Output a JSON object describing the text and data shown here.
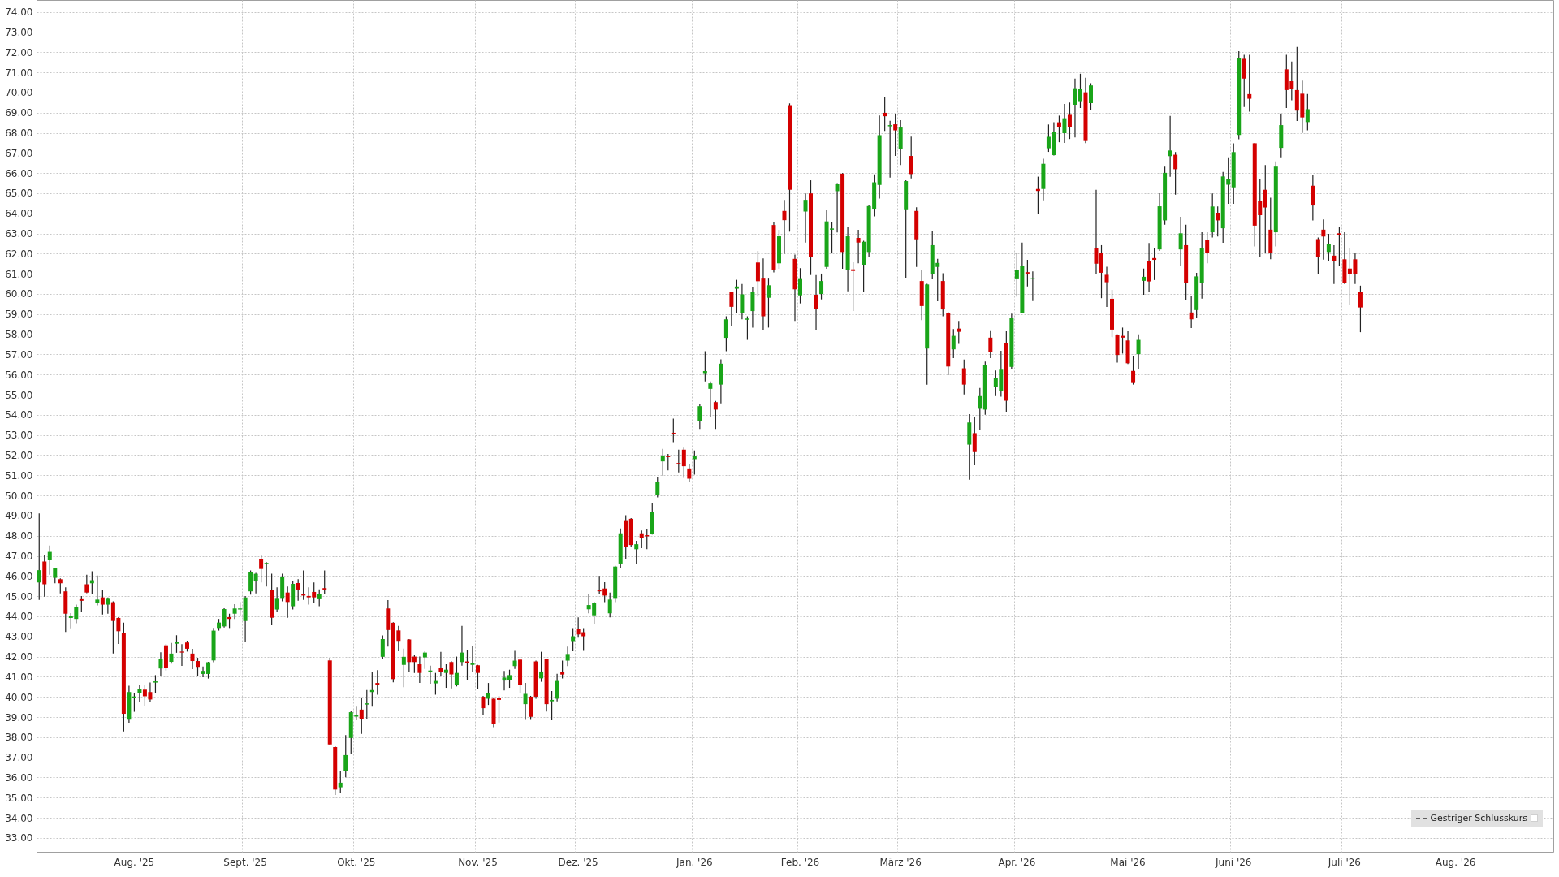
{
  "chart_data": {
    "type": "candlestick",
    "categories": [
      null,
      null,
      null,
      null,
      null,
      null,
      null,
      null,
      null,
      null,
      null,
      null,
      null,
      null,
      null,
      null,
      null,
      null,
      "Aug. '25",
      null,
      null,
      null,
      null,
      null,
      null,
      null,
      null,
      null,
      null,
      null,
      null,
      null,
      null,
      null,
      null,
      null,
      null,
      null,
      null,
      "Sept. '25",
      null,
      null,
      null,
      null,
      null,
      null,
      null,
      null,
      null,
      null,
      null,
      null,
      null,
      null,
      null,
      null,
      null,
      null,
      null,
      null,
      "Okt. '25",
      null,
      null,
      null,
      null,
      null,
      null,
      null,
      null,
      null,
      null,
      null,
      null,
      null,
      null,
      null,
      null,
      null,
      null,
      null,
      null,
      null,
      null,
      "Nov. '25",
      null,
      null,
      null,
      null,
      null,
      null,
      null,
      null,
      null,
      null,
      null,
      null,
      null,
      null,
      null,
      null,
      null,
      null,
      "Dez. '25",
      null,
      null,
      null,
      null,
      null,
      null,
      null,
      null,
      null,
      null,
      null,
      null,
      null,
      null,
      null,
      null,
      null,
      null,
      null,
      null,
      null,
      "Jan. '26",
      null,
      null,
      null,
      null,
      null,
      null,
      null,
      null,
      null,
      null,
      null,
      null,
      null,
      null,
      null,
      null,
      null,
      null,
      null,
      "Feb. '26",
      null,
      null,
      null,
      null,
      null,
      null,
      null,
      null,
      null,
      null,
      null,
      null,
      null,
      null,
      null,
      null,
      null,
      null,
      "März '26",
      null,
      null,
      null,
      null,
      null,
      null,
      null,
      null,
      null,
      null,
      null,
      null,
      null,
      null,
      null,
      null,
      null,
      null,
      null,
      null,
      null,
      "Apr. '26",
      null,
      null,
      null,
      null,
      null,
      null,
      null,
      null,
      null,
      null,
      null,
      null,
      null,
      null,
      null,
      null,
      null,
      null,
      null,
      null,
      "Mai '26",
      null,
      null,
      null,
      null,
      null,
      null,
      null,
      null,
      null,
      null,
      null,
      null,
      null,
      null,
      null,
      null,
      null,
      null,
      null,
      "Juni '26",
      null,
      null,
      null,
      null,
      null,
      null,
      null,
      null,
      null,
      null,
      null,
      null,
      null,
      null,
      null,
      null,
      null,
      null,
      null,
      null,
      "Juli '26",
      null,
      null,
      null,
      null,
      null,
      null,
      null,
      null,
      null,
      null,
      null,
      null,
      null,
      null,
      null,
      null,
      null,
      null,
      null,
      null,
      "Aug. '26",
      null,
      null,
      null,
      null,
      null,
      null,
      null,
      null,
      null,
      null,
      null,
      null,
      null,
      null,
      null,
      null,
      null,
      null
    ],
    "ohlc": [
      [
        45.68,
        49.11,
        44.81,
        46.29
      ],
      [
        46.72,
        47.02,
        44.98,
        45.59
      ],
      [
        46.78,
        47.52,
        46.06,
        47.2
      ],
      [
        45.91,
        46.41,
        45.64,
        46.38
      ],
      [
        45.84,
        45.88,
        45.14,
        45.64
      ],
      [
        45.24,
        45.44,
        43.22,
        44.13
      ],
      [
        43.92,
        44.16,
        43.4,
        44.01
      ],
      [
        43.87,
        44.58,
        43.66,
        44.47
      ],
      [
        44.85,
        45.01,
        44.2,
        44.77
      ],
      [
        45.59,
        46.06,
        45.15,
        45.18
      ],
      [
        45.64,
        46.24,
        45.1,
        45.79
      ],
      [
        44.67,
        46.02,
        44.54,
        44.83
      ],
      [
        44.94,
        45.3,
        44.09,
        44.58
      ],
      [
        44.58,
        44.94,
        44.13,
        44.87
      ],
      [
        44.7,
        44.74,
        42.15,
        43.77
      ],
      [
        43.92,
        43.96,
        42.63,
        43.26
      ],
      [
        43.19,
        43.69,
        38.29,
        39.16
      ],
      [
        38.87,
        40.55,
        38.72,
        40.24
      ],
      [
        39.94,
        40.17,
        39.26,
        40.02
      ],
      [
        40.17,
        40.6,
        39.74,
        40.4
      ],
      [
        40.36,
        40.57,
        39.56,
        40.03
      ],
      [
        40.24,
        40.71,
        39.77,
        39.87
      ],
      [
        40.71,
        41.08,
        40.17,
        40.77
      ],
      [
        41.41,
        42.21,
        41.04,
        41.89
      ],
      [
        42.56,
        42.62,
        41.31,
        41.42
      ],
      [
        41.74,
        42.68,
        41.65,
        42.15
      ],
      [
        42.64,
        43.06,
        42.19,
        42.75
      ],
      [
        42.25,
        42.62,
        41.54,
        42.2
      ],
      [
        42.7,
        42.79,
        42.25,
        42.39
      ],
      [
        42.15,
        42.39,
        41.38,
        41.78
      ],
      [
        41.78,
        41.94,
        41.02,
        41.45
      ],
      [
        41.14,
        41.51,
        40.98,
        41.29
      ],
      [
        41.14,
        41.74,
        40.91,
        41.72
      ],
      [
        41.81,
        43.42,
        41.72,
        43.29
      ],
      [
        43.42,
        43.87,
        43.29,
        43.69
      ],
      [
        43.5,
        44.4,
        43.44,
        44.36
      ],
      [
        43.96,
        44.13,
        43.42,
        43.87
      ],
      [
        44.13,
        44.6,
        43.87,
        44.39
      ],
      [
        44.34,
        44.71,
        44.04,
        44.39
      ],
      [
        43.77,
        45.01,
        42.72,
        44.94
      ],
      [
        45.24,
        46.28,
        45.08,
        46.19
      ],
      [
        45.73,
        46.15,
        45.14,
        46.11
      ],
      [
        46.85,
        47.02,
        45.68,
        46.35
      ],
      [
        46.58,
        46.69,
        45.48,
        46.65
      ],
      [
        45.3,
        46.11,
        43.56,
        43.93
      ],
      [
        44.34,
        45.44,
        44.2,
        44.87
      ],
      [
        44.87,
        46.11,
        44.74,
        45.95
      ],
      [
        45.18,
        45.48,
        43.93,
        44.71
      ],
      [
        44.5,
        45.75,
        44.34,
        45.61
      ],
      [
        45.65,
        45.84,
        44.77,
        45.33
      ],
      [
        45.1,
        46.28,
        44.81,
        45.03
      ],
      [
        45.01,
        45.44,
        44.58,
        44.94
      ],
      [
        45.21,
        45.68,
        44.67,
        44.94
      ],
      [
        44.85,
        45.34,
        44.5,
        45.12
      ],
      [
        45.4,
        46.28,
        45.1,
        45.33
      ],
      [
        41.81,
        41.94,
        37.62,
        37.64
      ],
      [
        37.51,
        37.55,
        35.13,
        35.4
      ],
      [
        35.51,
        36.33,
        35.23,
        35.74
      ],
      [
        36.33,
        38.1,
        36.01,
        37.11
      ],
      [
        37.96,
        39.31,
        37.19,
        39.24
      ],
      [
        39.02,
        39.51,
        38.84,
        39.1
      ],
      [
        39.37,
        39.94,
        38.16,
        38.9
      ],
      [
        39.62,
        40.34,
        38.9,
        39.68
      ],
      [
        40.24,
        41.23,
        39.51,
        40.34
      ],
      [
        40.69,
        41.33,
        40.11,
        40.61
      ],
      [
        41.99,
        43.05,
        41.86,
        42.87
      ],
      [
        44.39,
        44.8,
        42.5,
        43.32
      ],
      [
        43.68,
        43.71,
        40.72,
        40.88
      ],
      [
        43.3,
        43.52,
        42.27,
        42.78
      ],
      [
        41.59,
        42.4,
        40.48,
        41.99
      ],
      [
        42.85,
        42.87,
        41.23,
        41.73
      ],
      [
        42.0,
        42.09,
        41.19,
        41.73
      ],
      [
        41.62,
        42.0,
        40.69,
        41.19
      ],
      [
        41.96,
        42.27,
        41.39,
        42.2
      ],
      [
        41.24,
        41.55,
        40.65,
        41.31
      ],
      [
        40.67,
        41.19,
        40.11,
        40.79
      ],
      [
        41.42,
        42.24,
        41.02,
        41.23
      ],
      [
        41.19,
        41.62,
        40.45,
        41.35
      ],
      [
        41.73,
        41.77,
        40.42,
        41.12
      ],
      [
        40.61,
        42.0,
        40.52,
        41.19
      ],
      [
        41.73,
        43.52,
        41.55,
        42.2
      ],
      [
        41.76,
        42.34,
        40.85,
        41.69
      ],
      [
        41.59,
        42.54,
        41.26,
        41.7
      ],
      [
        41.57,
        41.59,
        40.38,
        41.19
      ],
      [
        40.01,
        40.05,
        39.08,
        39.44
      ],
      [
        39.91,
        40.69,
        39.6,
        40.21
      ],
      [
        39.91,
        39.94,
        38.5,
        38.67
      ],
      [
        39.94,
        40.05,
        38.73,
        39.85
      ],
      [
        40.81,
        41.29,
        40.32,
        40.96
      ],
      [
        40.85,
        41.35,
        40.45,
        41.08
      ],
      [
        41.53,
        42.29,
        41.39,
        41.8
      ],
      [
        41.85,
        41.89,
        40.18,
        40.59
      ],
      [
        39.64,
        40.69,
        38.86,
        40.15
      ],
      [
        40.01,
        40.05,
        38.86,
        39.01
      ],
      [
        41.76,
        41.8,
        39.91,
        40.01
      ],
      [
        40.92,
        42.24,
        40.75,
        41.26
      ],
      [
        41.89,
        41.9,
        39.27,
        39.64
      ],
      [
        39.78,
        40.29,
        38.84,
        39.85
      ],
      [
        39.91,
        41.15,
        39.78,
        40.79
      ],
      [
        41.22,
        41.8,
        40.92,
        41.11
      ],
      [
        41.8,
        42.5,
        41.53,
        42.13
      ],
      [
        42.77,
        43.41,
        42.27,
        43.01
      ],
      [
        43.38,
        43.95,
        42.94,
        43.1
      ],
      [
        43.21,
        43.41,
        42.29,
        43.01
      ],
      [
        44.35,
        45.12,
        44.15,
        44.56
      ],
      [
        44.05,
        44.72,
        43.64,
        44.66
      ],
      [
        45.32,
        46.0,
        45.12,
        45.24
      ],
      [
        45.38,
        45.69,
        44.7,
        45.03
      ],
      [
        44.15,
        45.18,
        43.95,
        44.83
      ],
      [
        44.87,
        46.51,
        44.7,
        46.47
      ],
      [
        46.62,
        48.36,
        46.41,
        48.12
      ],
      [
        48.77,
        49.02,
        46.82,
        47.44
      ],
      [
        48.84,
        48.88,
        47.44,
        47.54
      ],
      [
        47.33,
        47.75,
        46.62,
        47.58
      ],
      [
        48.12,
        48.26,
        47.38,
        47.89
      ],
      [
        48.03,
        48.32,
        47.33,
        47.97
      ],
      [
        48.1,
        49.64,
        48.06,
        49.19
      ],
      [
        50.01,
        50.93,
        49.9,
        50.66
      ],
      [
        51.69,
        52.31,
        50.99,
        51.96
      ],
      [
        51.96,
        52.06,
        51.24,
        51.9
      ],
      [
        53.11,
        53.81,
        52.64,
        53.05
      ],
      [
        51.61,
        52.27,
        51.14,
        51.55
      ],
      [
        52.27,
        52.37,
        50.87,
        51.45
      ],
      [
        51.34,
        51.55,
        50.66,
        50.83
      ],
      [
        51.8,
        52.23,
        51.03,
        51.96
      ],
      [
        53.71,
        54.53,
        53.3,
        54.43
      ],
      [
        56.07,
        57.16,
        55.66,
        56.17
      ],
      [
        55.29,
        55.66,
        53.88,
        55.56
      ],
      [
        54.63,
        54.69,
        53.3,
        54.26
      ],
      [
        55.5,
        56.75,
        54.57,
        56.54
      ],
      [
        57.82,
        58.89,
        57.16,
        58.74
      ],
      [
        60.08,
        60.12,
        58.43,
        59.36
      ],
      [
        60.26,
        60.7,
        59.05,
        60.37
      ],
      [
        59.05,
        60.49,
        58.74,
        59.98
      ],
      [
        58.72,
        58.89,
        57.72,
        58.78
      ],
      [
        59.15,
        60.33,
        58.33,
        60.08
      ],
      [
        61.56,
        62.13,
        59.87,
        60.63
      ],
      [
        60.8,
        61.76,
        58.23,
        58.89
      ],
      [
        59.81,
        60.8,
        58.33,
        60.43
      ],
      [
        63.42,
        63.58,
        61.07,
        61.21
      ],
      [
        61.52,
        63.18,
        61.25,
        62.86
      ],
      [
        64.12,
        64.66,
        61.99,
        63.66
      ],
      [
        69.37,
        69.46,
        63.09,
        65.17
      ],
      [
        61.74,
        61.95,
        58.66,
        60.23
      ],
      [
        59.93,
        61.28,
        59.53,
        60.78
      ],
      [
        64.09,
        64.99,
        62.55,
        64.67
      ],
      [
        64.99,
        65.64,
        60.94,
        61.85
      ],
      [
        59.96,
        60.94,
        58.21,
        59.26
      ],
      [
        60.0,
        61.01,
        59.73,
        60.64
      ],
      [
        61.34,
        64.16,
        61.25,
        63.6
      ],
      [
        63.19,
        63.58,
        62.01,
        63.25
      ],
      [
        65.1,
        65.5,
        63.05,
        65.46
      ],
      [
        65.97,
        66.0,
        61.25,
        62.08
      ],
      [
        61.17,
        63.33,
        60.13,
        62.86
      ],
      [
        61.22,
        61.57,
        59.15,
        61.14
      ],
      [
        62.78,
        63.18,
        61.52,
        62.55
      ],
      [
        61.45,
        62.64,
        60.09,
        62.59
      ],
      [
        62.08,
        64.43,
        61.84,
        64.36
      ],
      [
        64.23,
        65.93,
        63.85,
        65.54
      ],
      [
        65.41,
        68.86,
        64.74,
        67.88
      ],
      [
        68.99,
        69.77,
        68.09,
        68.82
      ],
      [
        68.32,
        68.59,
        65.77,
        68.38
      ],
      [
        68.42,
        68.93,
        66.85,
        68.12
      ],
      [
        67.21,
        68.62,
        66.4,
        68.26
      ],
      [
        64.2,
        65.64,
        60.81,
        65.6
      ],
      [
        66.85,
        67.81,
        65.73,
        65.95
      ],
      [
        64.12,
        64.3,
        61.34,
        62.71
      ],
      [
        60.64,
        61.17,
        58.7,
        59.4
      ],
      [
        57.29,
        60.5,
        55.5,
        60.47
      ],
      [
        60.98,
        63.11,
        60.74,
        62.42
      ],
      [
        61.34,
        61.74,
        59.64,
        61.54
      ],
      [
        60.64,
        61.03,
        58.89,
        59.23
      ],
      [
        59.06,
        59.09,
        55.97,
        56.4
      ],
      [
        57.25,
        58.26,
        56.82,
        57.92
      ],
      [
        58.28,
        58.66,
        57.52,
        58.12
      ],
      [
        56.31,
        56.74,
        55.01,
        55.5
      ],
      [
        52.52,
        54.03,
        50.78,
        53.62
      ],
      [
        53.09,
        53.89,
        51.5,
        52.15
      ],
      [
        54.3,
        55.33,
        53.25,
        54.93
      ],
      [
        54.26,
        56.64,
        54.0,
        56.47
      ],
      [
        57.83,
        58.16,
        56.82,
        57.11
      ],
      [
        55.4,
        56.2,
        54.93,
        55.84
      ],
      [
        55.17,
        57.18,
        54.9,
        56.24
      ],
      [
        57.58,
        58.15,
        54.16,
        54.7
      ],
      [
        56.38,
        59.02,
        56.27,
        58.79
      ],
      [
        60.77,
        62.05,
        59.87,
        61.17
      ],
      [
        59.06,
        62.55,
        59.03,
        61.41
      ],
      [
        61.08,
        61.69,
        60.37,
        61.01
      ],
      [
        60.73,
        61.12,
        59.65,
        60.78
      ],
      [
        65.21,
        65.82,
        63.98,
        65.11
      ],
      [
        65.21,
        66.71,
        64.64,
        66.46
      ],
      [
        67.23,
        68.41,
        67.05,
        67.8
      ],
      [
        66.89,
        68.52,
        66.87,
        68.04
      ],
      [
        68.52,
        68.85,
        67.53,
        68.3
      ],
      [
        67.98,
        69.43,
        67.5,
        68.72
      ],
      [
        68.89,
        69.5,
        67.69,
        68.3
      ],
      [
        69.39,
        70.69,
        67.77,
        70.21
      ],
      [
        69.57,
        70.93,
        69.23,
        70.16
      ],
      [
        70.01,
        70.73,
        67.49,
        67.59
      ],
      [
        69.47,
        70.46,
        69.13,
        70.35
      ],
      [
        62.28,
        65.17,
        60.99,
        61.5
      ],
      [
        62.05,
        62.42,
        59.79,
        61.05
      ],
      [
        60.95,
        61.35,
        59.35,
        60.58
      ],
      [
        59.76,
        60.2,
        57.85,
        58.23
      ],
      [
        57.96,
        57.99,
        56.59,
        56.97
      ],
      [
        57.92,
        58.33,
        57.04,
        57.83
      ],
      [
        57.69,
        58.15,
        56.52,
        56.56
      ],
      [
        56.18,
        56.9,
        55.5,
        55.58
      ],
      [
        57.01,
        57.99,
        56.25,
        57.72
      ],
      [
        60.65,
        61.26,
        59.96,
        60.85
      ],
      [
        61.63,
        62.53,
        60.1,
        60.62
      ],
      [
        61.78,
        62.28,
        60.69,
        61.69
      ],
      [
        62.21,
        65.0,
        62.14,
        64.35
      ],
      [
        63.65,
        66.32,
        63.44,
        66.01
      ],
      [
        66.84,
        68.84,
        65.81,
        67.12
      ],
      [
        66.91,
        67.04,
        64.93,
        66.19
      ],
      [
        62.21,
        63.83,
        61.39,
        63.01
      ],
      [
        62.42,
        63.44,
        59.72,
        60.54
      ],
      [
        59.08,
        59.9,
        58.31,
        58.74
      ],
      [
        59.2,
        61.05,
        58.82,
        60.87
      ],
      [
        60.54,
        63.06,
        59.77,
        62.29
      ],
      [
        62.67,
        63.06,
        61.52,
        62.03
      ],
      [
        63.06,
        64.99,
        62.8,
        64.34
      ],
      [
        64.03,
        64.34,
        62.85,
        63.65
      ],
      [
        63.26,
        66.06,
        62.54,
        65.83
      ],
      [
        65.42,
        66.78,
        64.47,
        65.71
      ],
      [
        65.29,
        67.48,
        64.47,
        67.04
      ],
      [
        67.89,
        72.05,
        67.68,
        71.72
      ],
      [
        71.67,
        71.87,
        69.28,
        70.69
      ],
      [
        69.92,
        71.87,
        69.05,
        69.69
      ],
      [
        67.48,
        67.5,
        62.36,
        63.39
      ],
      [
        64.6,
        65.68,
        61.85,
        63.91
      ],
      [
        65.17,
        66.4,
        62.03,
        64.29
      ],
      [
        63.19,
        64.78,
        61.72,
        62.03
      ],
      [
        63.06,
        66.58,
        62.36,
        66.32
      ],
      [
        67.25,
        68.92,
        66.78,
        68.38
      ],
      [
        71.15,
        71.87,
        69.23,
        70.12
      ],
      [
        70.56,
        71.54,
        69.61,
        70.18
      ],
      [
        70.12,
        72.26,
        68.58,
        69.1
      ],
      [
        69.94,
        70.59,
        67.99,
        68.76
      ],
      [
        68.53,
        69.92,
        68.12,
        69.17
      ],
      [
        65.37,
        65.88,
        63.65,
        64.39
      ],
      [
        62.72,
        62.8,
        61.0,
        61.83
      ],
      [
        63.19,
        63.7,
        61.7,
        62.85
      ],
      [
        62.08,
        62.98,
        61.65,
        62.47
      ],
      [
        61.9,
        62.42,
        60.49,
        61.65
      ],
      [
        63.01,
        63.32,
        61.39,
        62.93
      ],
      [
        61.72,
        63.06,
        60.49,
        60.54
      ],
      [
        61.26,
        62.29,
        59.46,
        61.0
      ],
      [
        61.72,
        62.03,
        60.49,
        61.0
      ],
      [
        60.1,
        60.41,
        58.1,
        59.33
      ],
      null,
      null,
      null,
      null,
      null,
      null,
      null,
      null,
      null,
      null,
      null,
      null,
      null,
      null,
      null,
      null,
      null,
      null,
      null,
      null,
      null,
      null,
      null,
      null,
      null,
      null,
      null,
      null,
      null,
      null,
      null,
      null,
      null,
      null,
      null,
      null
    ],
    "colors": [
      "#19a519",
      "#d40000",
      "#19a519",
      "#19a519",
      "#d40000",
      "#d40000",
      "#19a519",
      "#19a519",
      "#d40000",
      "#d40000",
      "#19a519",
      "#19a519",
      "#d40000",
      "#19a519",
      "#d40000",
      "#d40000",
      "#d40000",
      "#19a519",
      "#19a519",
      "#19a519",
      "#d40000",
      "#d40000",
      "#19a519",
      "#19a519",
      "#d40000",
      "#19a519",
      "#19a519",
      "#d40000",
      "#d40000",
      "#d40000",
      "#d40000",
      "#19a519",
      "#19a519",
      "#19a519",
      "#19a519",
      "#19a519",
      "#d40000",
      "#19a519",
      "#19a519",
      "#19a519",
      "#19a519",
      "#19a519",
      "#d40000",
      "#19a519",
      "#d40000",
      "#19a519",
      "#19a519",
      "#d40000",
      "#19a519",
      "#d40000",
      "#d40000",
      "#d40000",
      "#d40000",
      "#19a519",
      "#d40000",
      "#d40000",
      "#d40000",
      "#19a519",
      "#19a519",
      "#19a519",
      "#19a519",
      "#d40000",
      "#19a519",
      "#19a519",
      "#d40000",
      "#19a519",
      "#d40000",
      "#d40000",
      "#d40000",
      "#19a519",
      "#d40000",
      "#d40000",
      "#d40000",
      "#19a519",
      "#19a519",
      "#19a519",
      "#d40000",
      "#19a519",
      "#d40000",
      "#19a519",
      "#19a519",
      "#d40000",
      "#19a519",
      "#d40000",
      "#d40000",
      "#19a519",
      "#d40000",
      "#d40000",
      "#19a519",
      "#19a519",
      "#19a519",
      "#d40000",
      "#19a519",
      "#d40000",
      "#d40000",
      "#19a519",
      "#d40000",
      "#19a519",
      "#19a519",
      "#d40000",
      "#19a519",
      "#19a519",
      "#d40000",
      "#d40000",
      "#19a519",
      "#19a519",
      "#d40000",
      "#d40000",
      "#19a519",
      "#19a519",
      "#19a519",
      "#d40000",
      "#d40000",
      "#19a519",
      "#d40000",
      "#d40000",
      "#19a519",
      "#19a519",
      "#19a519",
      "#d40000",
      "#d40000",
      "#d40000",
      "#d40000",
      "#d40000",
      "#19a519",
      "#19a519",
      "#19a519",
      "#19a519",
      "#d40000",
      "#19a519",
      "#19a519",
      "#d40000",
      "#19a519",
      "#19a519",
      "#19a519",
      "#19a519",
      "#d40000",
      "#d40000",
      "#19a519",
      "#d40000",
      "#19a519",
      "#d40000",
      "#d40000",
      "#d40000",
      "#19a519",
      "#19a519",
      "#d40000",
      "#d40000",
      "#19a519",
      "#19a519",
      "#19a519",
      "#19a519",
      "#d40000",
      "#19a519",
      "#d40000",
      "#d40000",
      "#19a519",
      "#19a519",
      "#19a519",
      "#19a519",
      "#d40000",
      "#19a519",
      "#d40000",
      "#19a519",
      "#19a519",
      "#d40000",
      "#d40000",
      "#d40000",
      "#19a519",
      "#19a519",
      "#19a519",
      "#d40000",
      "#d40000",
      "#19a519",
      "#d40000",
      "#d40000",
      "#19a519",
      "#d40000",
      "#19a519",
      "#19a519",
      "#d40000",
      "#19a519",
      "#19a519",
      "#d40000",
      "#19a519",
      "#19a519",
      "#19a519",
      "#d40000",
      "#19a519",
      "#d40000",
      "#19a519",
      "#19a519",
      "#19a519",
      "#d40000",
      "#19a519",
      "#d40000",
      "#19a519",
      "#19a519",
      "#d40000",
      "#19a519",
      "#d40000",
      "#d40000",
      "#d40000",
      "#d40000",
      "#d40000",
      "#d40000",
      "#d40000",
      "#d40000",
      "#19a519",
      "#19a519",
      "#d40000",
      "#d40000",
      "#19a519",
      "#19a519",
      "#19a519",
      "#d40000",
      "#19a519",
      "#d40000",
      "#d40000",
      "#19a519",
      "#19a519",
      "#d40000",
      "#19a519",
      "#d40000",
      "#19a519",
      "#19a519",
      "#19a519",
      "#19a519",
      "#d40000",
      "#d40000",
      "#d40000",
      "#d40000",
      "#d40000",
      "#d40000",
      "#19a519",
      "#19a519",
      "#d40000",
      "#d40000",
      "#d40000",
      "#d40000",
      "#19a519",
      "#d40000",
      "#d40000",
      "#d40000",
      "#19a519",
      "#d40000",
      "#d40000",
      "#d40000",
      "#d40000",
      "#d40000",
      "#d40000",
      null,
      null,
      null,
      null,
      null,
      null,
      null,
      null,
      null,
      null,
      null,
      null,
      null,
      null,
      null,
      null,
      null,
      null,
      null,
      null,
      null,
      null,
      null,
      null,
      null,
      null,
      null,
      null,
      null,
      null,
      null,
      null,
      null,
      null,
      null,
      null
    ],
    "ylim": [
      32.31,
      74.59
    ],
    "yticks": [
      {
        "value": 33,
        "label": "33.00"
      },
      {
        "value": 34,
        "label": "34.00"
      },
      {
        "value": 35,
        "label": "35.00"
      },
      {
        "value": 36,
        "label": "36.00"
      },
      {
        "value": 37,
        "label": "37.00"
      },
      {
        "value": 38,
        "label": "38.00"
      },
      {
        "value": 39,
        "label": "39.00"
      },
      {
        "value": 40,
        "label": "40.00"
      },
      {
        "value": 41,
        "label": "41.00"
      },
      {
        "value": 42,
        "label": "42.00"
      },
      {
        "value": 43,
        "label": "43.00"
      },
      {
        "value": 44,
        "label": "44.00"
      },
      {
        "value": 45,
        "label": "45.00"
      },
      {
        "value": 46,
        "label": "46.00"
      },
      {
        "value": 47,
        "label": "47.00"
      },
      {
        "value": 48,
        "label": "48.00"
      },
      {
        "value": 49,
        "label": "49.00"
      },
      {
        "value": 50,
        "label": "50.00"
      },
      {
        "value": 51,
        "label": "51.00"
      },
      {
        "value": 52,
        "label": "52.00"
      },
      {
        "value": 53,
        "label": "53.00"
      },
      {
        "value": 54,
        "label": "54.00"
      },
      {
        "value": 55,
        "label": "55.00"
      },
      {
        "value": 56,
        "label": "56.00"
      },
      {
        "value": 57,
        "label": "57.00"
      },
      {
        "value": 58,
        "label": "58.00"
      },
      {
        "value": 59,
        "label": "59.00"
      },
      {
        "value": 60,
        "label": "60.00"
      },
      {
        "value": 61,
        "label": "61.00"
      },
      {
        "value": 62,
        "label": "62.00"
      },
      {
        "value": 63,
        "label": "63.00"
      },
      {
        "value": 64,
        "label": "64.00"
      },
      {
        "value": 65,
        "label": "65.00"
      },
      {
        "value": 66,
        "label": "66.00"
      },
      {
        "value": 67,
        "label": "67.00"
      },
      {
        "value": 68,
        "label": "68.00"
      },
      {
        "value": 69,
        "label": "69.00"
      },
      {
        "value": 70,
        "label": "70.00"
      },
      {
        "value": 71,
        "label": "71.00"
      },
      {
        "value": 72,
        "label": "72.00"
      },
      {
        "value": 73,
        "label": "73.00"
      },
      {
        "value": 74,
        "label": "74.00"
      }
    ],
    "grid": true,
    "annotations": [
      "Gestriger Schlusskurs"
    ]
  }
}
